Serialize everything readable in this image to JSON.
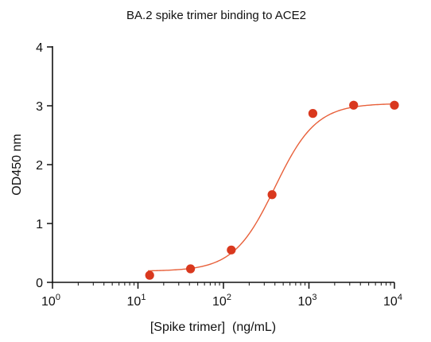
{
  "chart_data": {
    "type": "scatter",
    "title": "BA.2 spike trimer binding to ACE2",
    "xlabel": "[Spike trimer]  (ng/mL)",
    "ylabel": "OD450 nm",
    "x_scale": "log10",
    "xlim": [
      1,
      10000
    ],
    "ylim": [
      0,
      4
    ],
    "x_ticks": [
      {
        "base": "10",
        "exp": "0",
        "value": 1
      },
      {
        "base": "10",
        "exp": "1",
        "value": 10
      },
      {
        "base": "10",
        "exp": "2",
        "value": 100
      },
      {
        "base": "10",
        "exp": "3",
        "value": 1000
      },
      {
        "base": "10",
        "exp": "4",
        "value": 10000
      }
    ],
    "y_ticks": [
      "0",
      "1",
      "2",
      "3",
      "4"
    ],
    "grid": false,
    "series": [
      {
        "color": "#d9381e",
        "curve_color": "#e8603a",
        "x": [
          13.7,
          41.2,
          123.5,
          370.4,
          1111,
          3333,
          10000
        ],
        "y": [
          0.12,
          0.23,
          0.55,
          1.49,
          2.87,
          3.01,
          3.01
        ],
        "fit": {
          "model": "4PL",
          "bottom": 0.19,
          "top": 3.04,
          "ec50": 400,
          "hill": 1.8
        }
      }
    ]
  }
}
